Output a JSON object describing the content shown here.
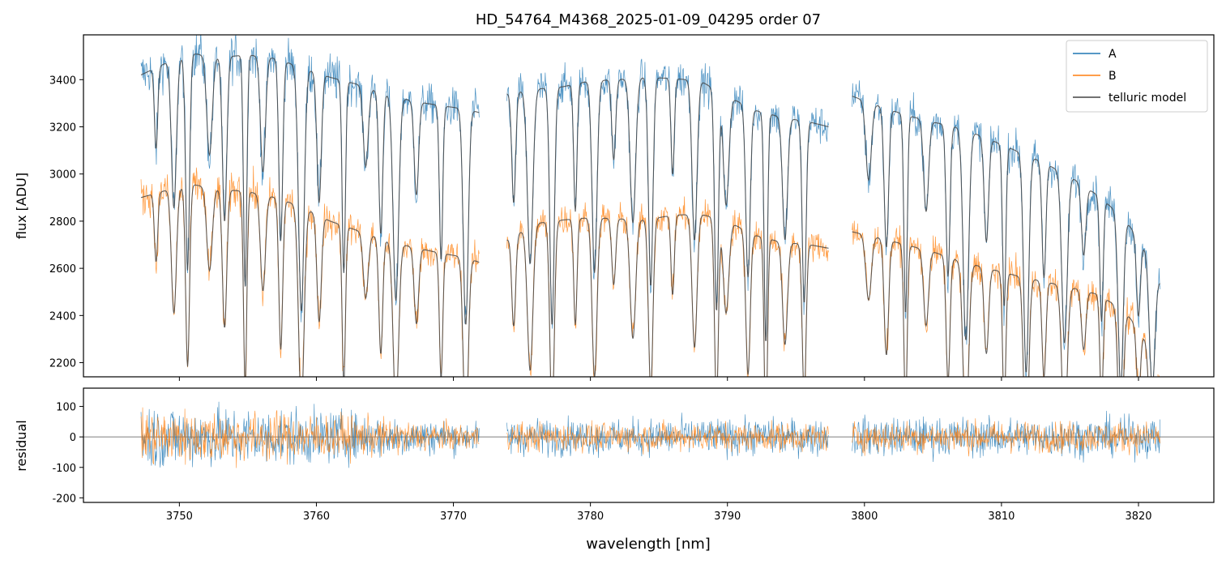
{
  "figure": {
    "title": "HD_54764_M4368_2025-01-09_04295  order 07"
  },
  "colors": {
    "A": "#1f77b4",
    "B": "#ff7f0e",
    "telluric": "#444444",
    "zero_line": "#555555"
  },
  "chart_data": [
    {
      "type": "line",
      "panel": "top",
      "title": "HD_54764_M4368_2025-01-09_04295  order 07",
      "xlabel": "",
      "ylabel": "flux [ADU]",
      "xlim": [
        3743.0,
        3825.5
      ],
      "ylim": [
        2140,
        3590
      ],
      "yticks": [
        2200,
        2400,
        2600,
        2800,
        3000,
        3200,
        3400
      ],
      "xticks": [
        3750,
        3760,
        3770,
        3780,
        3790,
        3800,
        3810,
        3820
      ],
      "legend": {
        "placement": "top-right",
        "entries": [
          "A",
          "B",
          "telluric model"
        ]
      },
      "gaps": [
        [
          3771.9,
          3773.9
        ],
        [
          3797.4,
          3799.1
        ]
      ],
      "line_centers": [
        3748.3,
        3749.6,
        3750.6,
        3752.2,
        3753.3,
        3754.8,
        3756.1,
        3757.4,
        3758.9,
        3760.2,
        3762.0,
        3763.6,
        3764.7,
        3765.8,
        3767.3,
        3769.1,
        3770.9,
        3774.4,
        3775.6,
        3777.2,
        3778.9,
        3780.3,
        3781.7,
        3783.1,
        3784.4,
        3786.0,
        3787.6,
        3789.2,
        3789.9,
        3791.5,
        3792.8,
        3794.2,
        3795.6,
        3800.3,
        3801.6,
        3803.0,
        3804.5,
        3806.1,
        3807.4,
        3808.9,
        3810.2,
        3811.8,
        3813.1,
        3814.6,
        3816.0,
        3817.3,
        3818.7,
        3820.0,
        3821.0
      ],
      "series": [
        {
          "name": "A",
          "continuum": {
            "x": [
              3747.2,
              3749.0,
              3751.0,
              3753.0,
              3755.0,
              3757.0,
              3759.0,
              3761.0,
              3763.0,
              3765.0,
              3767.0,
              3769.0,
              3771.0,
              3771.9,
              3773.9,
              3776.0,
              3778.0,
              3780.0,
              3782.0,
              3784.0,
              3786.0,
              3788.0,
              3790.0,
              3792.0,
              3794.0,
              3796.0,
              3797.4,
              3799.1,
              3801.0,
              3803.0,
              3805.0,
              3807.0,
              3809.0,
              3811.0,
              3813.0,
              3815.0,
              3817.0,
              3819.0,
              3820.5,
              3821.6
            ],
            "y": [
              3420,
              3470,
              3510,
              3495,
              3505,
              3490,
              3450,
              3410,
              3380,
              3340,
              3310,
              3290,
              3275,
              3260,
              3340,
              3360,
              3370,
              3395,
              3400,
              3410,
              3405,
              3395,
              3330,
              3270,
              3240,
              3220,
              3200,
              3330,
              3290,
              3250,
              3220,
              3195,
              3150,
              3100,
              3050,
              2990,
              2910,
              2810,
              2680,
              2540
            ]
          }
        },
        {
          "name": "B",
          "continuum": {
            "x": [
              3747.2,
              3749.0,
              3751.0,
              3753.0,
              3755.0,
              3757.0,
              3759.0,
              3761.0,
              3763.0,
              3765.0,
              3767.0,
              3769.0,
              3771.0,
              3771.9,
              3773.9,
              3776.0,
              3778.0,
              3780.0,
              3782.0,
              3784.0,
              3786.0,
              3788.0,
              3790.0,
              3792.0,
              3794.0,
              3796.0,
              3797.4,
              3799.1,
              3801.0,
              3803.0,
              3805.0,
              3807.0,
              3809.0,
              3811.0,
              3813.0,
              3815.0,
              3817.0,
              3819.0,
              3820.5,
              3821.6
            ],
            "y": [
              2900,
              2930,
              2955,
              2935,
              2925,
              2900,
              2860,
              2800,
              2760,
              2720,
              2690,
              2665,
              2645,
              2625,
              2720,
              2790,
              2805,
              2815,
              2810,
              2805,
              2825,
              2830,
              2800,
              2740,
              2710,
              2700,
              2685,
              2755,
              2730,
              2700,
              2670,
              2630,
              2600,
              2570,
              2545,
              2520,
              2490,
              2420,
              2300,
              2130
            ]
          }
        },
        {
          "name": "telluric model",
          "follows": [
            "A",
            "B"
          ]
        }
      ]
    },
    {
      "type": "line",
      "panel": "bottom",
      "xlabel": "wavelength [nm]",
      "ylabel": "residual",
      "xlim": [
        3743.0,
        3825.5
      ],
      "ylim": [
        -215,
        160
      ],
      "yticks": [
        -200,
        -100,
        0,
        100
      ],
      "xticks": [
        3750,
        3760,
        3770,
        3780,
        3790,
        3800,
        3810,
        3820
      ],
      "zero_line": 0,
      "series": [
        {
          "name": "A",
          "noise_amplitude": {
            "x": [
              3747.2,
              3760.0,
              3771.9,
              3773.9,
              3797.4,
              3799.1,
              3821.6
            ],
            "y": [
              130,
              105,
              55,
              70,
              70,
              75,
              75
            ]
          }
        },
        {
          "name": "B",
          "noise_amplitude": {
            "x": [
              3747.2,
              3760.0,
              3771.9,
              3773.9,
              3797.4,
              3799.1,
              3821.6
            ],
            "y": [
              110,
              90,
              45,
              55,
              55,
              60,
              60
            ]
          }
        }
      ]
    }
  ]
}
